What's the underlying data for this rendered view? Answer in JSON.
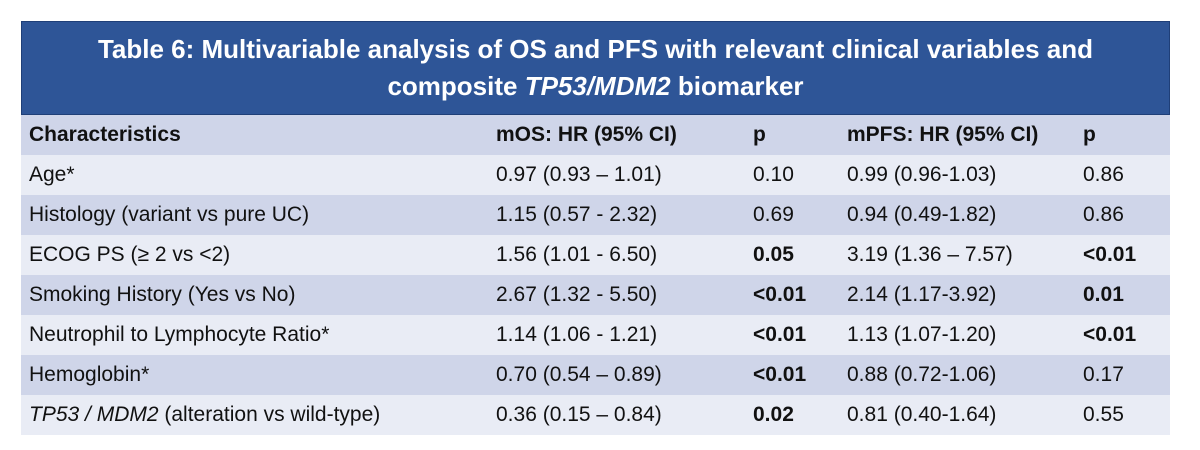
{
  "title": {
    "line1": "Table 6: Multivariable analysis of OS and PFS with relevant clinical variables and",
    "line2_prefix": "composite ",
    "line2_italic": "TP53/MDM2",
    "line2_suffix": " biomarker"
  },
  "headers": [
    "Characteristics",
    "mOS: HR (95% CI)",
    "p",
    "mPFS: HR (95% CI)",
    "p"
  ],
  "rows": [
    {
      "characteristic": "Age*",
      "os_hr": "0.97 (0.93 – 1.01)",
      "os_p": "0.10",
      "os_p_bold": false,
      "pfs_hr": "0.99 (0.96-1.03)",
      "pfs_p": "0.86",
      "pfs_p_bold": false
    },
    {
      "characteristic": "Histology (variant vs pure UC)",
      "os_hr": "1.15 (0.57 - 2.32)",
      "os_p": "0.69",
      "os_p_bold": false,
      "pfs_hr": "0.94 (0.49-1.82)",
      "pfs_p": "0.86",
      "pfs_p_bold": false
    },
    {
      "characteristic": "ECOG PS (≥ 2 vs <2)",
      "os_hr": "1.56 (1.01 - 6.50)",
      "os_p": "0.05",
      "os_p_bold": true,
      "pfs_hr": "3.19 (1.36 – 7.57)",
      "pfs_p": "<0.01",
      "pfs_p_bold": true
    },
    {
      "characteristic": "Smoking History (Yes vs No)",
      "os_hr": "2.67 (1.32 - 5.50)",
      "os_p": "<0.01",
      "os_p_bold": true,
      "pfs_hr": "2.14 (1.17-3.92)",
      "pfs_p": "0.01",
      "pfs_p_bold": true
    },
    {
      "characteristic": "Neutrophil to Lymphocyte Ratio*",
      "os_hr": "1.14 (1.06 - 1.21)",
      "os_p": "<0.01",
      "os_p_bold": true,
      "pfs_hr": "1.13 (1.07-1.20)",
      "pfs_p": "<0.01",
      "pfs_p_bold": true
    },
    {
      "characteristic": "Hemoglobin*",
      "os_hr": "0.70 (0.54 – 0.89)",
      "os_p": "<0.01",
      "os_p_bold": true,
      "pfs_hr": "0.88 (0.72-1.06)",
      "pfs_p": "0.17",
      "pfs_p_bold": false
    },
    {
      "characteristic_italic": "TP53 / MDM2",
      "characteristic_suffix": " (alteration vs wild-type)",
      "os_hr": "0.36 (0.15 – 0.84)",
      "os_p": "0.02",
      "os_p_bold": true,
      "pfs_hr": "0.81 (0.40-1.64)",
      "pfs_p": "0.55",
      "pfs_p_bold": false
    }
  ],
  "colors": {
    "title_bg": "#2e5597",
    "row_dark": "#cfd5e9",
    "row_light": "#e9ecf5"
  }
}
